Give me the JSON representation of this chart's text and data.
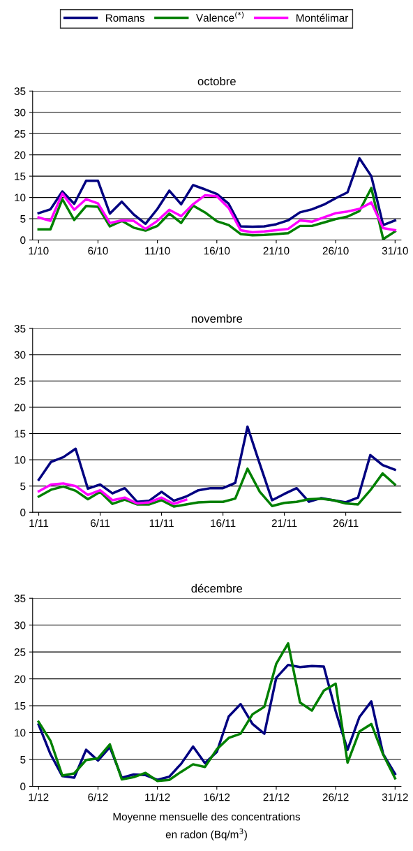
{
  "chart_data": [
    {
      "type": "line",
      "title": "octobre",
      "legend": "top",
      "grid": "y",
      "ylim": [
        0,
        35
      ],
      "yticks": [
        0,
        5,
        10,
        15,
        20,
        25,
        30,
        35
      ],
      "line_style": "solid",
      "marker": "none",
      "categories": [
        "1/10",
        null,
        null,
        null,
        null,
        "6/10",
        null,
        null,
        null,
        null,
        "11/10",
        null,
        null,
        null,
        null,
        "16/10",
        null,
        null,
        null,
        null,
        "21/10",
        null,
        null,
        null,
        null,
        "26/10",
        null,
        null,
        null,
        null,
        "31/10"
      ],
      "series": [
        {
          "name": "Romans",
          "color": "#000080",
          "values": [
            6.3,
            7.2,
            11.4,
            8.5,
            13.9,
            13.9,
            6.2,
            9.0,
            6.0,
            3.8,
            7.3,
            11.6,
            8.4,
            12.9,
            11.9,
            10.8,
            8.5,
            3.2,
            3.1,
            3.2,
            3.7,
            4.6,
            6.5,
            7.2,
            8.3,
            9.8,
            11.2,
            19.2,
            15.0,
            3.5,
            4.6
          ]
        },
        {
          "name": "Valence$^{(*)}$",
          "color": "#008000",
          "values": [
            2.5,
            2.5,
            9.6,
            4.7,
            8.0,
            7.8,
            3.2,
            4.5,
            2.9,
            2.2,
            3.3,
            6.2,
            4.0,
            8.1,
            6.5,
            4.4,
            3.5,
            1.4,
            1.1,
            1.2,
            1.4,
            1.6,
            3.3,
            3.3,
            4.1,
            4.9,
            5.5,
            6.8,
            12.2,
            0.2,
            2.0
          ]
        },
        {
          "name": "Montélimar",
          "color": "#ff00ff",
          "values": [
            5.3,
            4.5,
            10.9,
            7.1,
            9.6,
            8.6,
            4.0,
            4.6,
            4.5,
            2.6,
            4.5,
            7.1,
            5.6,
            8.4,
            10.5,
            10.3,
            7.5,
            2.3,
            1.8,
            2.0,
            2.3,
            2.6,
            4.6,
            4.3,
            5.3,
            6.3,
            6.7,
            7.3,
            8.8,
            2.8,
            2.3
          ]
        }
      ]
    },
    {
      "type": "line",
      "title": "novembre",
      "grid": "y",
      "ylim": [
        0,
        35
      ],
      "yticks": [
        0,
        5,
        10,
        15,
        20,
        25,
        30,
        35
      ],
      "line_style": "solid",
      "marker": "none",
      "categories": [
        "1/11",
        null,
        null,
        null,
        null,
        "6/11",
        null,
        null,
        null,
        null,
        "11/11",
        null,
        null,
        null,
        null,
        "16/11",
        null,
        null,
        null,
        null,
        "21/11",
        null,
        null,
        null,
        null,
        "26/11",
        null,
        null,
        null,
        null
      ],
      "series": [
        {
          "color": "#000080",
          "values": [
            6.2,
            9.6,
            10.5,
            12.1,
            4.5,
            5.3,
            3.6,
            4.6,
            2.0,
            2.2,
            3.9,
            2.2,
            3.0,
            4.2,
            4.6,
            4.6,
            5.6,
            16.3,
            9.2,
            2.3,
            3.5,
            4.6,
            2.0,
            2.7,
            2.3,
            1.9,
            2.8,
            10.9,
            9.0,
            8.1
          ]
        },
        {
          "color": "#008000",
          "values": [
            3.0,
            4.3,
            4.9,
            4.1,
            2.5,
            3.9,
            1.6,
            2.4,
            1.5,
            1.5,
            2.3,
            1.1,
            1.5,
            1.9,
            2.0,
            2.0,
            2.6,
            8.3,
            3.9,
            1.2,
            1.8,
            2.0,
            2.5,
            2.6,
            2.3,
            1.7,
            1.5,
            4.2,
            7.4,
            5.3
          ]
        },
        {
          "color": "#ff00ff",
          "values": [
            4.0,
            5.3,
            5.5,
            5.0,
            3.3,
            4.2,
            2.3,
            2.8,
            1.7,
            1.9,
            2.8,
            1.6,
            2.4,
            null,
            null,
            null,
            null,
            null,
            null,
            null,
            null,
            null,
            null,
            null,
            null,
            null,
            null,
            null,
            null,
            null
          ]
        }
      ]
    },
    {
      "type": "line",
      "title": "décembre",
      "grid": "y",
      "ylim": [
        0,
        35
      ],
      "yticks": [
        0,
        5,
        10,
        15,
        20,
        25,
        30,
        35
      ],
      "line_style": "solid",
      "marker": "none",
      "categories": [
        "1/12",
        null,
        null,
        null,
        null,
        "6/12",
        null,
        null,
        null,
        null,
        "11/12",
        null,
        null,
        null,
        null,
        "16/12",
        null,
        null,
        null,
        null,
        "21/12",
        null,
        null,
        null,
        null,
        "26/12",
        null,
        null,
        null,
        null,
        "31/12"
      ],
      "series": [
        {
          "color": "#000080",
          "values": [
            11.5,
            6.0,
            1.9,
            1.6,
            6.8,
            4.8,
            7.3,
            1.6,
            2.2,
            2.1,
            1.2,
            1.8,
            4.2,
            7.4,
            4.3,
            6.4,
            13.0,
            15.3,
            11.6,
            9.8,
            20.2,
            22.6,
            22.2,
            22.4,
            22.3,
            14.0,
            6.8,
            12.9,
            15.8,
            6.0,
            2.3
          ]
        },
        {
          "color": "#008000",
          "values": [
            12.0,
            8.5,
            2.0,
            2.4,
            4.9,
            5.2,
            7.8,
            1.3,
            1.7,
            2.5,
            1.0,
            1.2,
            2.7,
            4.1,
            3.6,
            6.9,
            9.0,
            9.8,
            13.4,
            14.8,
            22.8,
            26.6,
            15.6,
            14.1,
            17.8,
            19.1,
            4.4,
            10.2,
            11.6,
            5.9,
            1.5
          ]
        }
      ],
      "annotations": [
        "Moyenne mensuelle des concentrations\nen radon (Bq/m$^{3}$)"
      ]
    }
  ]
}
